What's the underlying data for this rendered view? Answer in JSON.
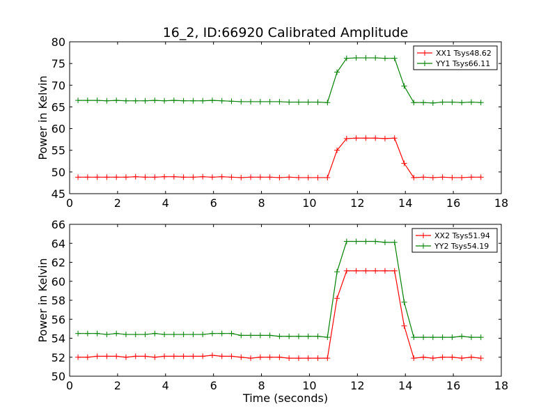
{
  "title": "16_2, ID:66920 Calibrated Amplitude",
  "colors": {
    "red": "#ff0000",
    "green": "#008000"
  },
  "chart_data": [
    {
      "type": "line",
      "ylabel": "Power in Kelvin",
      "xlabel": "",
      "xlim": [
        0,
        18
      ],
      "ylim": [
        45,
        80
      ],
      "xticks": [
        0,
        2,
        4,
        6,
        8,
        10,
        12,
        14,
        16,
        18
      ],
      "yticks": [
        45,
        50,
        55,
        60,
        65,
        70,
        75,
        80
      ],
      "legend_position": "top-right",
      "x": [
        0.35,
        0.75,
        1.15,
        1.55,
        1.95,
        2.35,
        2.75,
        3.15,
        3.55,
        3.95,
        4.35,
        4.75,
        5.15,
        5.55,
        5.95,
        6.35,
        6.75,
        7.15,
        7.55,
        7.95,
        8.35,
        8.75,
        9.15,
        9.55,
        9.95,
        10.35,
        10.75,
        11.15,
        11.55,
        11.95,
        12.35,
        12.75,
        13.15,
        13.55,
        13.95,
        14.35,
        14.75,
        15.15,
        15.55,
        15.95,
        16.35,
        16.75,
        17.15
      ],
      "series": [
        {
          "name": "XX1 Tsys48.62",
          "color": "#ff0000",
          "values": [
            48.8,
            48.8,
            48.8,
            48.8,
            48.8,
            48.8,
            48.9,
            48.8,
            48.8,
            48.9,
            48.9,
            48.8,
            48.8,
            48.9,
            48.8,
            48.9,
            48.8,
            48.7,
            48.8,
            48.8,
            48.8,
            48.7,
            48.8,
            48.7,
            48.7,
            48.7,
            48.7,
            55.0,
            57.7,
            57.8,
            57.8,
            57.8,
            57.7,
            57.8,
            52.0,
            48.7,
            48.8,
            48.7,
            48.8,
            48.7,
            48.7,
            48.8,
            48.8
          ]
        },
        {
          "name": "YY1 Tsys66.11",
          "color": "#008000",
          "values": [
            66.5,
            66.5,
            66.5,
            66.4,
            66.5,
            66.4,
            66.4,
            66.4,
            66.5,
            66.4,
            66.5,
            66.4,
            66.4,
            66.4,
            66.5,
            66.4,
            66.3,
            66.2,
            66.2,
            66.2,
            66.2,
            66.2,
            66.1,
            66.1,
            66.1,
            66.1,
            66.0,
            73.0,
            76.2,
            76.3,
            76.3,
            76.3,
            76.2,
            76.2,
            69.8,
            66.0,
            66.0,
            65.9,
            66.1,
            66.1,
            66.0,
            66.1,
            66.0
          ]
        }
      ]
    },
    {
      "type": "line",
      "ylabel": "Power in Kelvin",
      "xlabel": "Time (seconds)",
      "xlim": [
        0,
        18
      ],
      "ylim": [
        50,
        66
      ],
      "xticks": [
        0,
        2,
        4,
        6,
        8,
        10,
        12,
        14,
        16,
        18
      ],
      "yticks": [
        50,
        52,
        54,
        56,
        58,
        60,
        62,
        64,
        66
      ],
      "legend_position": "top-right",
      "x": [
        0.35,
        0.75,
        1.15,
        1.55,
        1.95,
        2.35,
        2.75,
        3.15,
        3.55,
        3.95,
        4.35,
        4.75,
        5.15,
        5.55,
        5.95,
        6.35,
        6.75,
        7.15,
        7.55,
        7.95,
        8.35,
        8.75,
        9.15,
        9.55,
        9.95,
        10.35,
        10.75,
        11.15,
        11.55,
        11.95,
        12.35,
        12.75,
        13.15,
        13.55,
        13.95,
        14.35,
        14.75,
        15.15,
        15.55,
        15.95,
        16.35,
        16.75,
        17.15
      ],
      "series": [
        {
          "name": "XX2 Tsys51.94",
          "color": "#ff0000",
          "values": [
            52.0,
            52.0,
            52.1,
            52.1,
            52.1,
            52.0,
            52.1,
            52.1,
            52.0,
            52.1,
            52.1,
            52.1,
            52.1,
            52.1,
            52.2,
            52.1,
            52.1,
            52.0,
            51.9,
            52.0,
            52.0,
            52.0,
            51.9,
            51.9,
            51.9,
            51.9,
            51.9,
            58.2,
            61.1,
            61.1,
            61.1,
            61.1,
            61.1,
            61.1,
            55.3,
            51.9,
            52.0,
            51.9,
            52.0,
            52.0,
            51.9,
            52.0,
            51.9
          ]
        },
        {
          "name": "YY2 Tsys54.19",
          "color": "#008000",
          "values": [
            54.5,
            54.5,
            54.5,
            54.4,
            54.5,
            54.4,
            54.4,
            54.4,
            54.5,
            54.4,
            54.4,
            54.4,
            54.4,
            54.4,
            54.5,
            54.5,
            54.5,
            54.3,
            54.3,
            54.3,
            54.3,
            54.2,
            54.2,
            54.2,
            54.2,
            54.2,
            54.1,
            61.0,
            64.2,
            64.2,
            64.2,
            64.2,
            64.1,
            64.1,
            57.8,
            54.1,
            54.1,
            54.1,
            54.1,
            54.1,
            54.2,
            54.1,
            54.1
          ]
        }
      ]
    }
  ]
}
